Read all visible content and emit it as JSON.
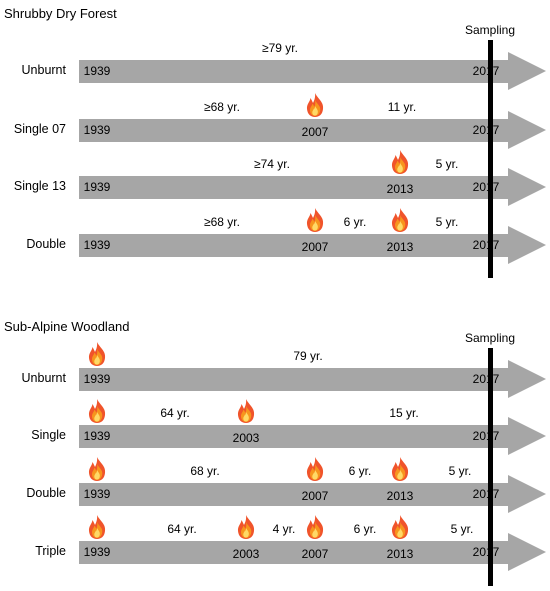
{
  "panels": [
    {
      "title": "Shrubby Dry Forest",
      "sampling_label": "Sampling",
      "rows": [
        {
          "label": "Unburnt",
          "start_year": "1939",
          "end_year": "2017",
          "fire_years": [],
          "intervals": [
            "≥79 yr."
          ]
        },
        {
          "label": "Single 07",
          "start_year": "1939",
          "end_year": "2017",
          "fire_years": [
            "2007"
          ],
          "intervals": [
            "≥68 yr.",
            "11 yr."
          ]
        },
        {
          "label": "Single 13",
          "start_year": "1939",
          "end_year": "2017",
          "fire_years": [
            "2013"
          ],
          "intervals": [
            "≥74 yr.",
            "5 yr."
          ]
        },
        {
          "label": "Double",
          "start_year": "1939",
          "end_year": "2017",
          "fire_years": [
            "2007",
            "2013"
          ],
          "intervals": [
            "≥68 yr.",
            "6 yr.",
            "5 yr."
          ]
        }
      ]
    },
    {
      "title": "Sub-Alpine Woodland",
      "sampling_label": "Sampling",
      "rows": [
        {
          "label": "Unburnt",
          "start_year": "1939",
          "end_year": "2017",
          "fire_years": [
            "1939"
          ],
          "intervals": [
            "79 yr."
          ]
        },
        {
          "label": "Single",
          "start_year": "1939",
          "end_year": "2017",
          "fire_years": [
            "1939",
            "2003"
          ],
          "intervals": [
            "64 yr.",
            "15 yr."
          ]
        },
        {
          "label": "Double",
          "start_year": "1939",
          "end_year": "2017",
          "fire_years": [
            "1939",
            "2007",
            "2013"
          ],
          "intervals": [
            "68 yr.",
            "6 yr.",
            "5 yr."
          ]
        },
        {
          "label": "Triple",
          "start_year": "1939",
          "end_year": "2017",
          "fire_years": [
            "1939",
            "2003",
            "2007",
            "2013"
          ],
          "intervals": [
            "64 yr.",
            "4 yr.",
            "6 yr.",
            "5 yr."
          ]
        }
      ]
    }
  ],
  "colors": {
    "arrow": "#a6a6a6",
    "flame_outer": "#f0542b",
    "flame_mid": "#f7941d",
    "flame_inner": "#ffd966"
  },
  "icons": {
    "fire": "fire-icon",
    "sampling_line": "sampling-line"
  }
}
